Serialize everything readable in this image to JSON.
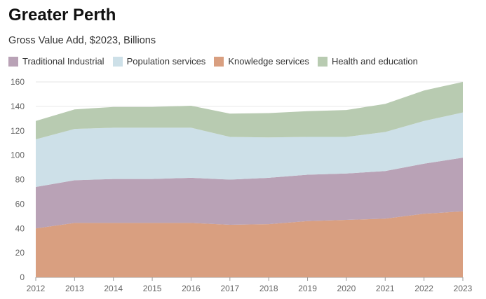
{
  "chart_data": {
    "type": "area",
    "stacked": true,
    "title": "Greater Perth",
    "subtitle": "Gross Value Add, $2023, Billions",
    "x": [
      "2012",
      "2013",
      "2014",
      "2015",
      "2016",
      "2017",
      "2018",
      "2019",
      "2020",
      "2021",
      "2022",
      "2023"
    ],
    "ylim": [
      0,
      160
    ],
    "yticks": [
      0,
      20,
      40,
      60,
      80,
      100,
      120,
      140,
      160
    ],
    "grid": true,
    "legend_position": "top-left",
    "series": [
      {
        "name": "Traditional Industrial",
        "color": "#b9a2b6",
        "values": [
          34,
          35,
          36,
          36,
          37,
          37,
          38,
          38,
          38,
          39,
          41,
          44
        ]
      },
      {
        "name": "Population services",
        "color": "#cde0e8",
        "values": [
          39,
          42,
          42,
          42,
          41,
          35,
          33,
          31,
          30,
          32,
          35,
          37
        ]
      },
      {
        "name": "Knowledge services",
        "color": "#d99f80",
        "values": [
          40,
          44.5,
          44.5,
          44.5,
          44.5,
          43,
          43.5,
          46,
          47,
          48,
          52,
          54
        ]
      },
      {
        "name": "Health and education",
        "color": "#b8cbb1",
        "values": [
          15,
          16,
          17,
          17,
          18,
          19,
          20,
          21,
          22,
          23,
          25,
          25
        ]
      }
    ]
  }
}
